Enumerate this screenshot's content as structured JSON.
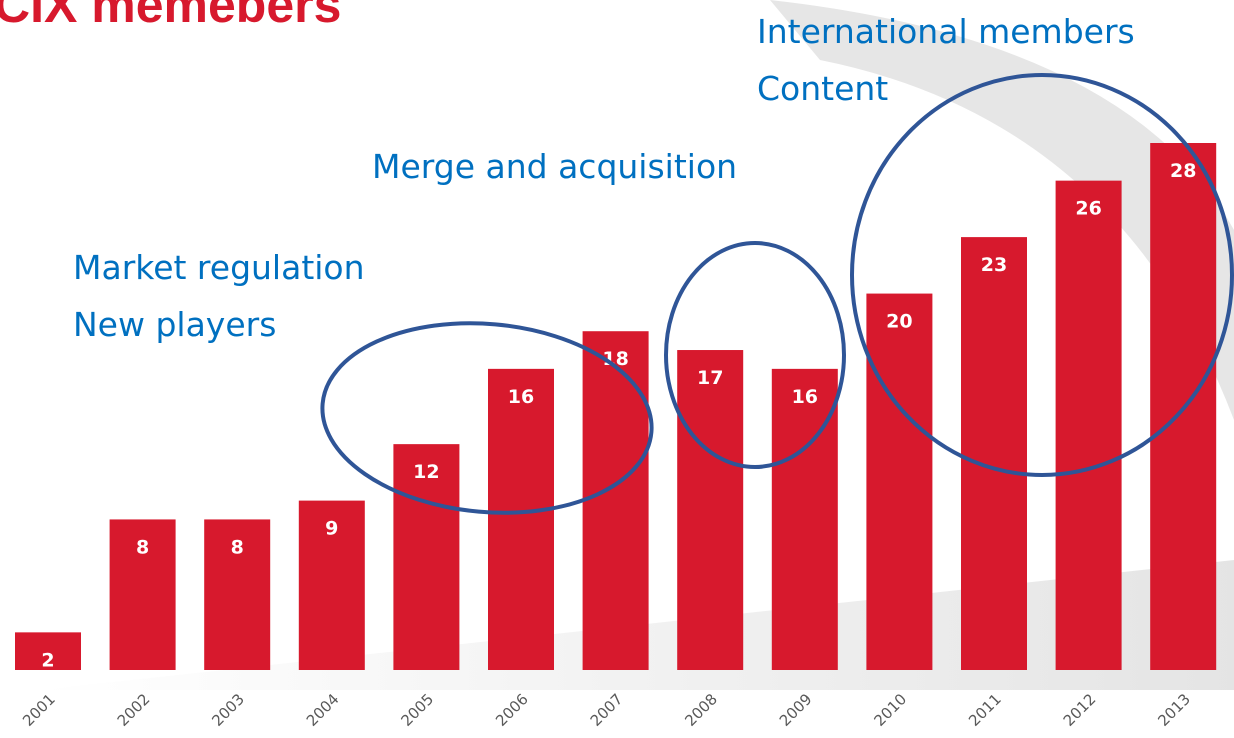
{
  "chart_data": {
    "type": "bar",
    "title": "CIX memebers",
    "categories": [
      "2001",
      "2002",
      "2003",
      "2004",
      "2005",
      "2006",
      "2007",
      "2008",
      "2009",
      "2010",
      "2011",
      "2012",
      "2013"
    ],
    "values": [
      2,
      8,
      8,
      9,
      12,
      16,
      18,
      17,
      16,
      20,
      23,
      26,
      28
    ],
    "color": "#d7192d",
    "annotations": [
      "International members",
      "Content",
      "Merge and acquisition",
      "Market regulation",
      "New players"
    ]
  }
}
